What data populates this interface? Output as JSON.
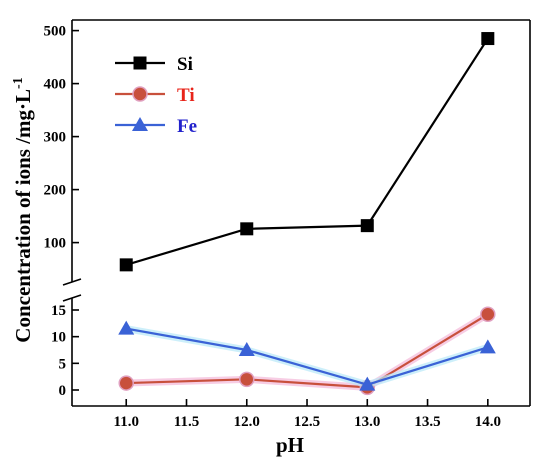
{
  "chart_data": {
    "type": "line",
    "title": "",
    "xlabel": "pH",
    "ylabel_text": "Concentration of ions /mg·L",
    "ylabel_superscript": "-1",
    "x": [
      11.0,
      12.0,
      13.0,
      14.0
    ],
    "x_ticks": [
      11.0,
      11.5,
      12.0,
      12.5,
      13.0,
      13.5,
      14.0
    ],
    "x_tick_labels": [
      "11.0",
      "11.5",
      "12.0",
      "12.5",
      "13.0",
      "13.5",
      "14.0"
    ],
    "xlim": [
      10.55,
      14.35
    ],
    "y_axis_break": true,
    "y_upper_range": [
      20,
      520
    ],
    "y_upper_ticks": [
      100,
      200,
      300,
      400,
      500
    ],
    "y_upper_tick_labels": [
      "100",
      "200",
      "300",
      "400",
      "500"
    ],
    "y_lower_range": [
      -3,
      18
    ],
    "y_lower_ticks": [
      0,
      5,
      10,
      15
    ],
    "y_lower_tick_labels": [
      "0",
      "5",
      "10",
      "15"
    ],
    "legend_position": "top-left",
    "grid": false,
    "series": [
      {
        "name": "Si",
        "values": [
          58,
          126,
          132,
          485
        ],
        "color": "#000000",
        "label_color": "#000000",
        "marker": "square",
        "segment": "upper"
      },
      {
        "name": "Ti",
        "values": [
          1.3,
          2.0,
          0.5,
          14.2
        ],
        "color": "#c8503c",
        "label_color": "#e8241a",
        "marker": "circle",
        "segment": "lower"
      },
      {
        "name": "Fe",
        "values": [
          11.5,
          7.5,
          1.0,
          8.0
        ],
        "color": "#3a62d6",
        "label_color": "#2222cc",
        "marker": "triangle",
        "segment": "lower"
      }
    ]
  }
}
